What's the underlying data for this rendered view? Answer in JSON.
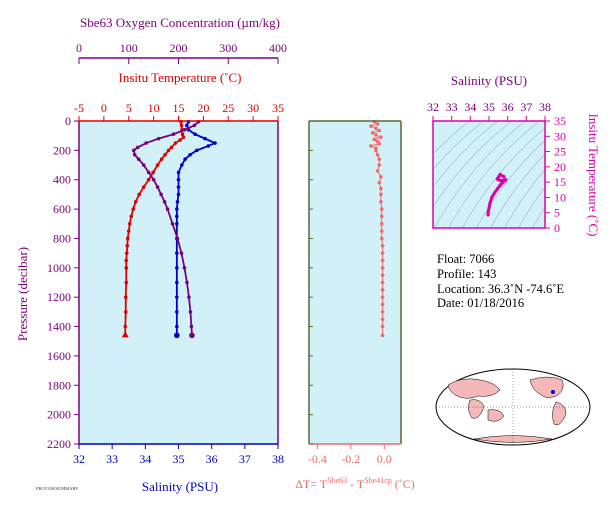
{
  "colors": {
    "oxygen": "#7a007a",
    "temperature": "#dd0000",
    "salinity": "#0000cc",
    "delta_t": "#f06a6a",
    "theta_s": "#dd00aa",
    "panel_bg": "#d2f0f8",
    "grid_green": "#556b2f"
  },
  "labels": {
    "oxygen_title": "Sbe63 Oxygen Concentration (µm/kg)",
    "temp_title": "Insitu Temperature (˚C)",
    "sal_bottom_title": "Salinity (PSU)",
    "pressure_title": "Pressure (decibar)",
    "dt_title_prefix": "ΔT= T",
    "dt_sup1": "Sbe63",
    "dt_mid": " - T",
    "dt_sup2": "Sbe41cp",
    "dt_suffix": " (˚C)",
    "ts_sal_title": "Salinity (PSU)",
    "ts_temp_title": "Insitu Temperature (˚C)",
    "footer_small": "PROVOR/SUMMARY"
  },
  "float_info": {
    "float": "Float:  7066",
    "profile": "Profile:  143",
    "location": "Location:  36.3˚N  -74.6˚E",
    "date": "Date:  01/18/2016"
  },
  "chart_data": [
    {
      "type": "line",
      "panel": "profiles",
      "axes": {
        "pressure": {
          "label": "Pressure (decibar)",
          "range": [
            2200,
            0
          ],
          "ticks": [
            0,
            200,
            400,
            600,
            800,
            1000,
            1200,
            1400,
            1600,
            1800,
            2000,
            2200
          ]
        },
        "oxygen": {
          "label": "Sbe63 Oxygen Concentration (µm/kg)",
          "range": [
            0,
            400
          ],
          "ticks": [
            0,
            100,
            200,
            300,
            400
          ]
        },
        "temperature": {
          "label": "Insitu Temperature (˚C)",
          "range": [
            -5,
            35
          ],
          "ticks": [
            -5,
            0,
            5,
            10,
            15,
            20,
            25,
            30,
            35
          ]
        },
        "salinity": {
          "label": "Salinity (PSU)",
          "range": [
            32,
            38
          ],
          "ticks": [
            32,
            33,
            34,
            35,
            36,
            37,
            38
          ]
        }
      },
      "series": [
        {
          "name": "temperature",
          "pressure": [
            5,
            30,
            60,
            90,
            110,
            130,
            150,
            180,
            200,
            230,
            260,
            300,
            350,
            400,
            450,
            500,
            550,
            600,
            650,
            700,
            750,
            800,
            850,
            900,
            950,
            1000,
            1100,
            1200,
            1300,
            1400,
            1460
          ],
          "values": [
            15.5,
            15.6,
            15.7,
            15.8,
            16.0,
            15.3,
            14.4,
            13.6,
            13.0,
            12.3,
            11.6,
            10.8,
            9.9,
            9.0,
            8.0,
            7.1,
            6.4,
            5.9,
            5.5,
            5.2,
            5.0,
            4.8,
            4.7,
            4.6,
            4.5,
            4.5,
            4.5,
            4.4,
            4.4,
            4.3,
            4.3
          ]
        },
        {
          "name": "salinity",
          "pressure": [
            5,
            30,
            60,
            90,
            120,
            150,
            170,
            200,
            230,
            260,
            300,
            350,
            400,
            450,
            500,
            550,
            600,
            650,
            700,
            800,
            900,
            1000,
            1100,
            1200,
            1300,
            1400,
            1460
          ],
          "values": [
            35.3,
            35.25,
            35.3,
            35.5,
            35.8,
            36.1,
            35.9,
            35.55,
            35.35,
            35.2,
            35.1,
            35.0,
            35.0,
            35.0,
            35.0,
            34.97,
            34.95,
            34.95,
            34.95,
            34.95,
            34.95,
            34.95,
            34.95,
            34.95,
            34.95,
            34.95,
            34.95
          ]
        },
        {
          "name": "oxygen",
          "pressure": [
            5,
            30,
            60,
            90,
            120,
            150,
            180,
            200,
            230,
            260,
            300,
            350,
            400,
            450,
            500,
            550,
            600,
            700,
            800,
            900,
            1000,
            1100,
            1200,
            1300,
            1400,
            1460
          ],
          "values": [
            240,
            232,
            212,
            190,
            160,
            135,
            118,
            110,
            112,
            120,
            130,
            140,
            150,
            158,
            165,
            172,
            178,
            188,
            198,
            206,
            212,
            217,
            221,
            224,
            226,
            227
          ]
        }
      ]
    },
    {
      "type": "scatter",
      "panel": "delta_t",
      "axes": {
        "x": {
          "label": "ΔT= T(Sbe63) - T(Sbe41cp) (˚C)",
          "range": [
            -0.45,
            0.1
          ],
          "ticks": [
            -0.4,
            -0.2,
            0.0
          ]
        },
        "pressure": {
          "range": [
            2200,
            0
          ]
        }
      },
      "series": [
        {
          "name": "delta_t",
          "pressure": [
            5,
            20,
            35,
            50,
            65,
            80,
            95,
            110,
            125,
            140,
            155,
            170,
            185,
            200,
            230,
            260,
            300,
            340,
            380,
            420,
            460,
            500,
            550,
            600,
            650,
            700,
            750,
            800,
            850,
            900,
            950,
            1000,
            1050,
            1100,
            1150,
            1200,
            1250,
            1300,
            1350,
            1400,
            1460
          ],
          "values": [
            -0.06,
            -0.04,
            -0.08,
            -0.05,
            -0.03,
            -0.07,
            -0.05,
            -0.02,
            -0.06,
            -0.04,
            -0.03,
            -0.08,
            -0.05,
            -0.05,
            -0.04,
            -0.03,
            -0.03,
            -0.04,
            -0.02,
            -0.03,
            -0.02,
            -0.02,
            -0.02,
            -0.015,
            -0.015,
            -0.015,
            -0.015,
            -0.015,
            -0.01,
            -0.01,
            -0.01,
            -0.01,
            -0.01,
            -0.01,
            -0.01,
            -0.01,
            -0.01,
            -0.01,
            -0.01,
            -0.01,
            -0.01
          ]
        }
      ]
    },
    {
      "type": "line",
      "panel": "theta_s",
      "axes": {
        "x": {
          "label": "Salinity (PSU)",
          "range": [
            32,
            38
          ],
          "ticks": [
            32,
            33,
            34,
            35,
            36,
            37,
            38
          ]
        },
        "y": {
          "label": "Insitu Temperature (˚C)",
          "range": [
            0,
            35
          ],
          "ticks": [
            0,
            5,
            10,
            15,
            20,
            25,
            30,
            35
          ]
        }
      },
      "series": [
        {
          "name": "theta_s",
          "x": [
            34.95,
            34.95,
            35.0,
            35.05,
            35.15,
            35.3,
            35.45,
            35.6,
            35.75,
            35.85,
            35.9,
            35.6,
            35.45,
            35.6,
            35.8
          ],
          "y": [
            4.3,
            5.0,
            6.5,
            8.0,
            10.0,
            11.5,
            12.8,
            14.0,
            15.0,
            15.5,
            15.8,
            15.5,
            16.0,
            17.5,
            16.8
          ]
        }
      ]
    }
  ]
}
